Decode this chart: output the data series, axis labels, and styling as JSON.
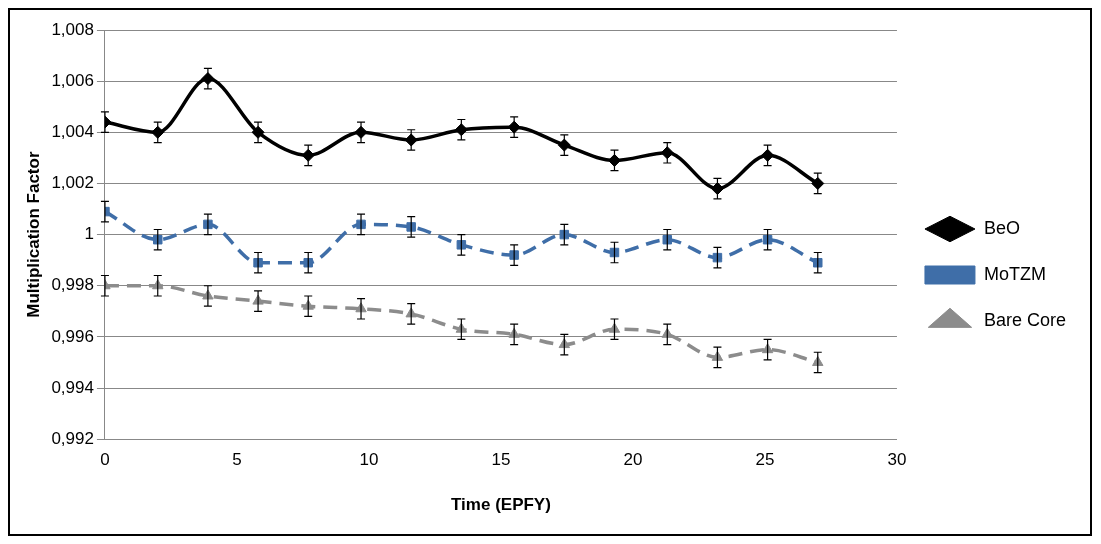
{
  "chart_data": {
    "type": "line",
    "xlabel": "Time (EPFY)",
    "ylabel": "Multiplication Factor",
    "x": [
      0,
      2,
      3.9,
      5.8,
      7.7,
      9.7,
      11.6,
      13.5,
      15.5,
      17.4,
      19.3,
      21.3,
      23.2,
      25.1,
      27.0
    ],
    "series": [
      {
        "name": "BeO",
        "color": "#000000",
        "marker": "diamond",
        "line_style": "solid",
        "values": [
          1.0044,
          1.004,
          1.0061,
          1.004,
          1.0031,
          1.004,
          1.0037,
          1.0041,
          1.0042,
          1.0035,
          1.0029,
          1.0032,
          1.0018,
          1.0031,
          1.002
        ],
        "errors": [
          0.0004,
          0.0004,
          0.0004,
          0.0004,
          0.0004,
          0.0004,
          0.0004,
          0.0004,
          0.0004,
          0.0004,
          0.0004,
          0.0004,
          0.0004,
          0.0004,
          0.0004
        ]
      },
      {
        "name": "MoTZM",
        "color": "#3f6ea8",
        "marker": "square",
        "line_style": "dashed",
        "values": [
          1.0009,
          0.9998,
          1.0004,
          0.9989,
          0.9989,
          1.0004,
          1.0003,
          0.9996,
          0.9992,
          1.0,
          0.9993,
          0.9998,
          0.9991,
          0.9998,
          0.9989
        ],
        "errors": [
          0.0004,
          0.0004,
          0.0004,
          0.0004,
          0.0004,
          0.0004,
          0.0004,
          0.0004,
          0.0004,
          0.0004,
          0.0004,
          0.0004,
          0.0004,
          0.0004,
          0.0004
        ]
      },
      {
        "name": "Bare Core",
        "color": "#8c8c8c",
        "marker": "triangle",
        "line_style": "dashed",
        "values": [
          0.998,
          0.998,
          0.9976,
          0.9974,
          0.9972,
          0.9971,
          0.9969,
          0.9963,
          0.9961,
          0.9957,
          0.9963,
          0.9961,
          0.9952,
          0.9955,
          0.995
        ],
        "errors": [
          0.0004,
          0.0004,
          0.0004,
          0.0004,
          0.0004,
          0.0004,
          0.0004,
          0.0004,
          0.0004,
          0.0004,
          0.0004,
          0.0004,
          0.0004,
          0.0004,
          0.0004
        ]
      }
    ],
    "xlim": [
      0,
      30
    ],
    "xticks": [
      0,
      5,
      10,
      15,
      20,
      25,
      30
    ],
    "ylim": [
      0.992,
      1.008
    ],
    "yticks": [
      {
        "value": 0.992,
        "label": "0,992"
      },
      {
        "value": 0.994,
        "label": "0,994"
      },
      {
        "value": 0.996,
        "label": "0,996"
      },
      {
        "value": 0.998,
        "label": "0,998"
      },
      1,
      {
        "value": 1.002,
        "label": "1,002"
      },
      {
        "value": 1.004,
        "label": "1,004"
      },
      {
        "value": 1.006,
        "label": "1,006"
      },
      {
        "value": 1.008,
        "label": "1,008"
      }
    ],
    "grid": "y",
    "legend": "right"
  }
}
